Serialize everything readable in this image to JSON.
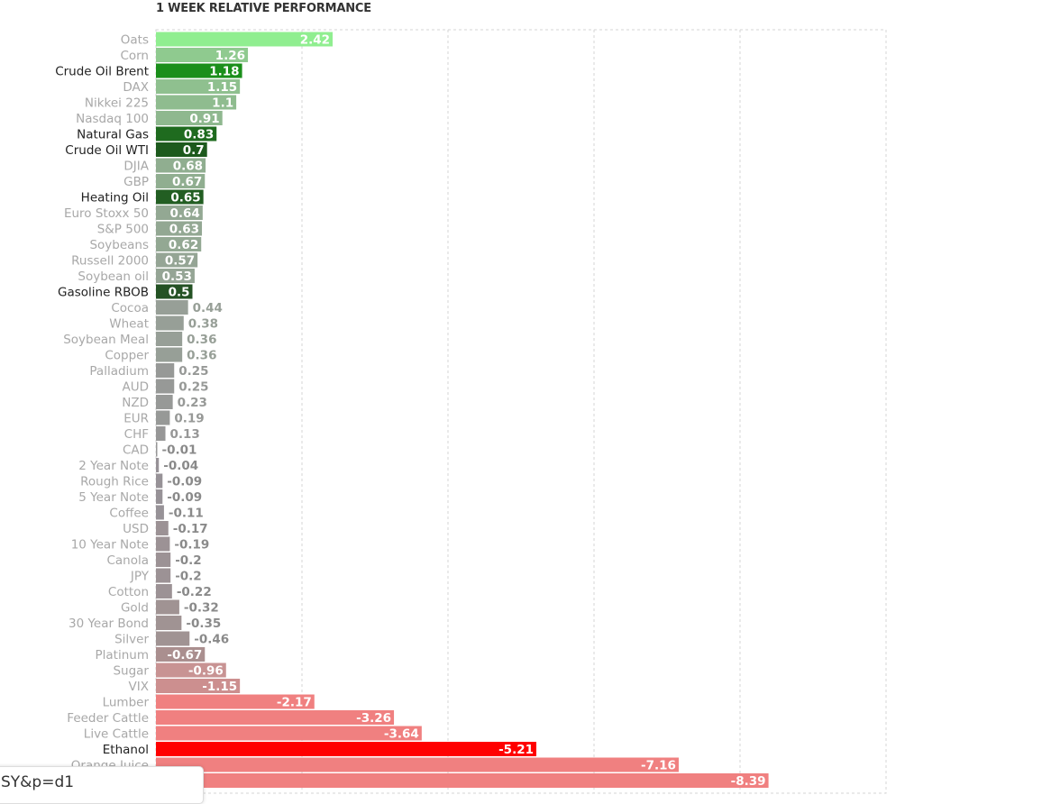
{
  "chart_data": {
    "type": "bar",
    "orientation": "horizontal",
    "title": "1 WEEK RELATIVE PERFORMANCE",
    "xlabel": "",
    "ylabel": "",
    "xlim": [
      -10,
      15
    ],
    "grid": true,
    "categories": [
      "Oats",
      "Corn",
      "Crude Oil Brent",
      "DAX",
      "Nikkei 225",
      "Nasdaq 100",
      "Natural Gas",
      "Crude Oil WTI",
      "DJIA",
      "GBP",
      "Heating Oil",
      "Euro Stoxx 50",
      "S&P 500",
      "Soybeans",
      "Russell 2000",
      "Soybean oil",
      "Gasoline RBOB",
      "Cocoa",
      "Wheat",
      "Soybean Meal",
      "Copper",
      "Palladium",
      "AUD",
      "NZD",
      "EUR",
      "CHF",
      "CAD",
      "2 Year Note",
      "Rough Rice",
      "5 Year Note",
      "Coffee",
      "USD",
      "10 Year Note",
      "Canola",
      "JPY",
      "Cotton",
      "Gold",
      "30 Year Bond",
      "Silver",
      "Platinum",
      "Sugar",
      "VIX",
      "Lumber",
      "Feeder Cattle",
      "Live Cattle",
      "Ethanol",
      "Orange Juice",
      ""
    ],
    "values": [
      2.42,
      1.26,
      1.18,
      1.15,
      1.1,
      0.91,
      0.83,
      0.7,
      0.68,
      0.67,
      0.65,
      0.64,
      0.63,
      0.62,
      0.57,
      0.53,
      0.5,
      0.44,
      0.38,
      0.36,
      0.36,
      0.25,
      0.25,
      0.23,
      0.19,
      0.13,
      -0.01,
      -0.04,
      -0.09,
      -0.09,
      -0.11,
      -0.17,
      -0.19,
      -0.2,
      -0.2,
      -0.22,
      -0.32,
      -0.35,
      -0.46,
      -0.67,
      -0.96,
      -1.15,
      -2.17,
      -3.26,
      -3.64,
      -5.21,
      -7.16,
      -8.39
    ],
    "value_labels": [
      "2.42",
      "1.26",
      "1.18",
      "1.15",
      "1.1",
      "0.91",
      "0.83",
      "0.7",
      "0.68",
      "0.67",
      "0.65",
      "0.64",
      "0.63",
      "0.62",
      "0.57",
      "0.53",
      "0.5",
      "0.44",
      "0.38",
      "0.36",
      "0.36",
      "0.25",
      "0.25",
      "0.23",
      "0.19",
      "0.13",
      "-0.01",
      "-0.04",
      "-0.09",
      "-0.09",
      "-0.11",
      "-0.17",
      "-0.19",
      "-0.2",
      "-0.2",
      "-0.22",
      "-0.32",
      "-0.35",
      "-0.46",
      "-0.67",
      "-0.96",
      "-1.15",
      "-2.17",
      "-3.26",
      "-3.64",
      "-5.21",
      "-7.16",
      "-8.39"
    ],
    "colors": [
      "#90ee90",
      "#8fca8f",
      "#1a8f1a",
      "#8fc08f",
      "#8fbc8f",
      "#8fb88f",
      "#1f6b1f",
      "#1d5a1d",
      "#90ae90",
      "#90ae90",
      "#225e22",
      "#93a893",
      "#93a893",
      "#93a893",
      "#95a595",
      "#95a595",
      "#245224",
      "#979f97",
      "#979f97",
      "#979f97",
      "#979f97",
      "#979997",
      "#979997",
      "#979997",
      "#979997",
      "#979797",
      "#979797",
      "#979297",
      "#979297",
      "#979297",
      "#979297",
      "#9c9295",
      "#9c9295",
      "#9c9295",
      "#9c9295",
      "#9c9295",
      "#a09393",
      "#a09393",
      "#a09393",
      "#aa8f8f",
      "#c89393",
      "#cc8f8f",
      "#f08080",
      "#f08080",
      "#f08080",
      "#ff0000",
      "#f08080",
      "#f08080"
    ],
    "highlighted": [
      "Crude Oil Brent",
      "Natural Gas",
      "Crude Oil WTI",
      "Heating Oil",
      "Gasoline RBOB",
      "Ethanol"
    ]
  },
  "ui": {
    "url_fragment": "SY&p=d1"
  }
}
